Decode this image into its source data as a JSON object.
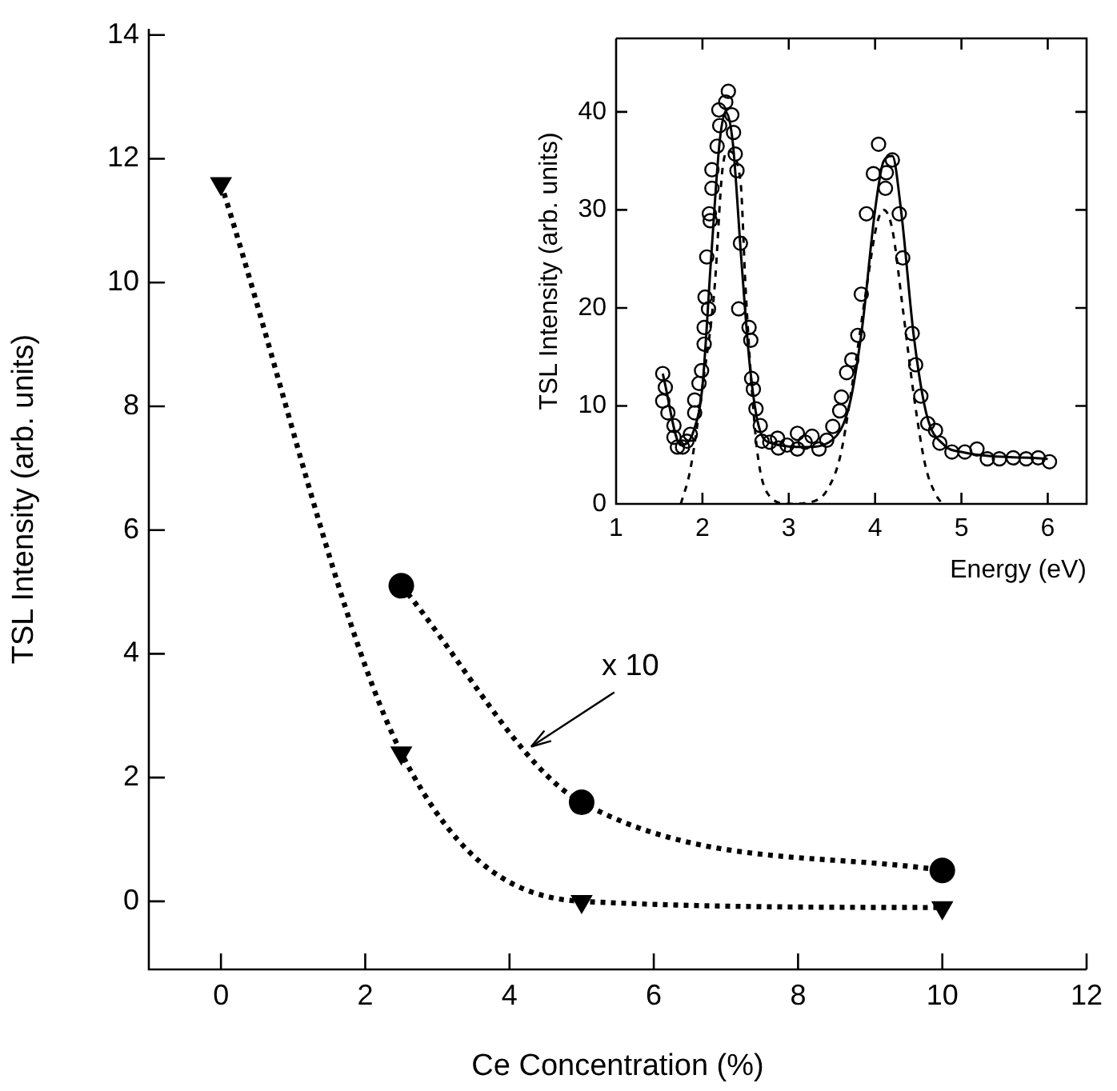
{
  "chart_data": [
    {
      "type": "line",
      "xlabel": "Ce Concentration (%)",
      "ylabel": "TSL Intensity (arb. units)",
      "xlim": [
        -1,
        12
      ],
      "xticks": [
        0,
        2,
        4,
        6,
        8,
        10,
        12
      ],
      "ylim": [
        -1.1,
        14.1
      ],
      "yticks": [
        0,
        2,
        4,
        6,
        8,
        10,
        12,
        14
      ],
      "grid": false,
      "legend": false,
      "line_style": "dotted",
      "series": [
        {
          "color": "#000000",
          "marker": "triangle",
          "x": [
            0,
            2.5,
            5,
            10
          ],
          "values": [
            11.6,
            2.4,
            0.0,
            -0.1
          ]
        },
        {
          "color": "#000000",
          "marker": "circle",
          "x": [
            2.5,
            5,
            10
          ],
          "values": [
            5.1,
            1.6,
            0.5
          ]
        }
      ],
      "annotations": [
        {
          "text": "x 10",
          "x": 4.3,
          "y": 2.5
        }
      ]
    },
    {
      "type": "scatter",
      "xlabel": "Energy (eV)",
      "ylabel": "TSL Intensity (arb. units)",
      "xlim": [
        1,
        6.45
      ],
      "xticks": [
        1,
        2,
        3,
        4,
        5,
        6
      ],
      "ylim": [
        0,
        47.5
      ],
      "yticks": [
        0,
        10,
        20,
        30,
        40
      ],
      "grid": false,
      "legend": false,
      "series": [
        {
          "color": "#000000",
          "marker": "circle",
          "x": [
            1.54,
            1.57,
            1.54,
            1.6,
            1.67,
            1.67,
            1.71,
            1.77,
            1.82,
            1.86,
            1.91,
            1.91,
            1.96,
            1.99,
            2.02,
            2.02,
            2.07,
            2.03,
            2.05,
            2.09,
            2.08,
            2.11,
            2.11,
            2.17,
            2.2,
            2.19,
            2.27,
            2.3,
            2.34,
            2.36,
            2.38,
            2.4,
            2.44,
            2.42,
            2.54,
            2.56,
            2.57,
            2.59,
            2.62,
            2.67,
            2.69,
            2.78,
            2.87,
            2.88,
            2.98,
            3.1,
            3.1,
            3.19,
            3.27,
            3.35,
            3.44,
            3.51,
            3.59,
            3.61,
            3.67,
            3.73,
            3.8,
            3.84,
            3.9,
            3.98,
            4.04,
            4.12,
            4.13,
            4.2,
            4.28,
            4.32,
            4.43,
            4.47,
            4.53,
            4.61,
            4.7,
            4.75,
            4.89,
            5.04,
            5.18,
            5.3,
            5.44,
            5.6,
            5.75,
            5.89,
            6.02
          ],
          "values": [
            13.3,
            11.9,
            10.5,
            9.3,
            8.0,
            6.8,
            5.8,
            5.8,
            6.4,
            7.1,
            9.3,
            10.6,
            12.3,
            13.6,
            16.3,
            18.0,
            19.9,
            21.1,
            25.2,
            28.9,
            29.6,
            32.2,
            34.1,
            36.5,
            38.6,
            40.2,
            41.0,
            42.1,
            39.7,
            37.9,
            35.7,
            34.0,
            26.6,
            19.9,
            18.0,
            16.7,
            12.8,
            11.7,
            9.7,
            8.0,
            6.4,
            6.3,
            6.7,
            5.7,
            6.0,
            7.2,
            5.6,
            6.3,
            6.9,
            5.6,
            6.5,
            7.9,
            9.5,
            10.9,
            13.4,
            14.7,
            17.2,
            21.4,
            29.6,
            33.7,
            36.7,
            32.2,
            33.8,
            35.1,
            29.6,
            25.1,
            17.4,
            14.2,
            11.0,
            8.2,
            7.5,
            6.2,
            5.3,
            5.3,
            5.6,
            4.6,
            4.6,
            4.7,
            4.6,
            4.7,
            4.3
          ]
        },
        {
          "type": "line",
          "color": "#000000",
          "marker": "none",
          "line_style": "solid",
          "x": [
            1.54,
            1.75,
            1.9,
            2.0,
            2.1,
            2.2,
            2.27,
            2.35,
            2.45,
            2.55,
            2.65,
            2.8,
            3.2,
            3.5,
            3.7,
            3.85,
            4.0,
            4.1,
            4.2,
            4.3,
            4.45,
            4.6,
            4.8,
            5.0,
            6.0
          ],
          "values": [
            13.3,
            6,
            7.5,
            12,
            25,
            37,
            40,
            37,
            25,
            14,
            8,
            6.2,
            5.8,
            6.5,
            10,
            18,
            30,
            35,
            35.5,
            30,
            17,
            9,
            6,
            5.3,
            4.6
          ]
        },
        {
          "type": "line",
          "color": "#000000",
          "marker": "none",
          "line_style": "dashed",
          "x": [
            1.75,
            1.86,
            2.0,
            2.14,
            2.23,
            2.3,
            2.44,
            2.5,
            2.57,
            2.64,
            2.76,
            3.0,
            3.3,
            3.45,
            3.6,
            3.75,
            3.9,
            4.02,
            4.1,
            4.2,
            4.32,
            4.45,
            4.58,
            4.7,
            4.78
          ],
          "values": [
            0,
            3.5,
            12,
            22,
            34,
            36,
            33,
            22,
            12,
            5,
            1,
            0,
            0.3,
            1.5,
            5,
            13,
            22,
            28.5,
            30,
            28,
            20,
            11,
            4,
            1,
            0
          ]
        }
      ]
    }
  ]
}
